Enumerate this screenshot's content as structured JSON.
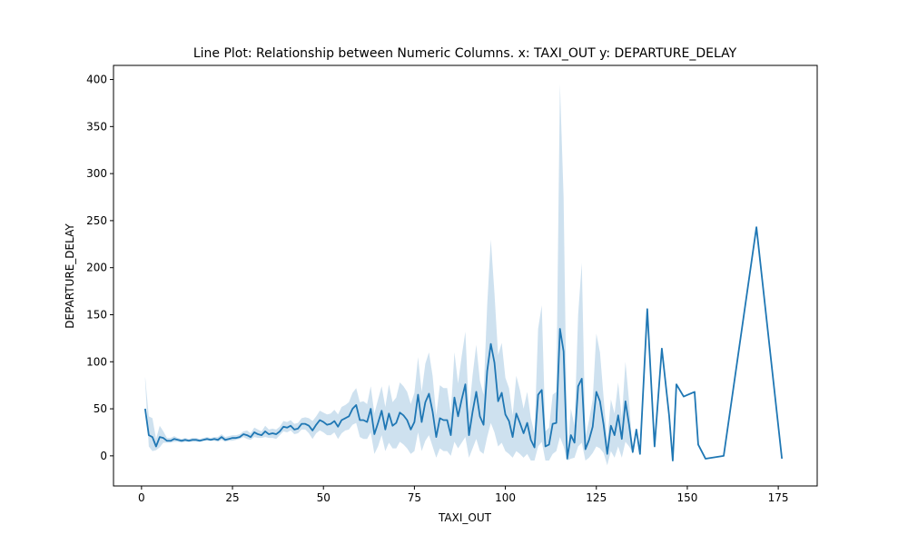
{
  "chart_data": {
    "type": "line",
    "title": "Line Plot: Relationship between Numeric Columns. x: TAXI_OUT y: DEPARTURE_DELAY",
    "xlabel": "TAXI_OUT",
    "ylabel": "DEPARTURE_DELAY",
    "xlim": [
      -7.7,
      185.7
    ],
    "ylim": [
      -32,
      415
    ],
    "xticks": [
      0,
      25,
      50,
      75,
      100,
      125,
      150,
      175
    ],
    "yticks": [
      0,
      50,
      100,
      150,
      200,
      250,
      300,
      350,
      400
    ],
    "grid": false,
    "line_color": "#1f77b4",
    "band_color": "#1f77b4",
    "series": [
      {
        "x": [
          1,
          2,
          3,
          4,
          5,
          6,
          7,
          8,
          9,
          10,
          11,
          12,
          13,
          14,
          15,
          16,
          17,
          18,
          19,
          20,
          21,
          22,
          23,
          24,
          25,
          26,
          27,
          28,
          29,
          30,
          31,
          32,
          33,
          34,
          35,
          36,
          37,
          38,
          39,
          40,
          41,
          42,
          43,
          44,
          45,
          46,
          47,
          48,
          49,
          50,
          51,
          52,
          53,
          54,
          55,
          56,
          57,
          58,
          59,
          60,
          61,
          62,
          63,
          64,
          65,
          66,
          67,
          68,
          69,
          70,
          71,
          72,
          73,
          74,
          75,
          76,
          77,
          78,
          79,
          80,
          81,
          82,
          83,
          84,
          85,
          86,
          87,
          88,
          89,
          90,
          91,
          92,
          93,
          94,
          95,
          96,
          97,
          98,
          99,
          100,
          101,
          102,
          103,
          104,
          105,
          106,
          107,
          108,
          109,
          110,
          111,
          112,
          113,
          114,
          115,
          116,
          117,
          118,
          119,
          120,
          121,
          122,
          123,
          124,
          125,
          126,
          127,
          128,
          129,
          130,
          131,
          132,
          133,
          134,
          135,
          136,
          137,
          139,
          141,
          143,
          145,
          146,
          147,
          149,
          152,
          153,
          155,
          160,
          169,
          176
        ],
        "y": [
          50,
          22,
          20,
          10,
          20,
          19,
          16,
          16,
          18,
          17,
          16,
          17,
          16,
          17,
          17,
          16,
          17,
          18,
          17,
          18,
          17,
          20,
          17,
          18,
          19,
          19,
          20,
          23,
          22,
          20,
          25,
          23,
          22,
          26,
          23,
          24,
          23,
          26,
          31,
          30,
          32,
          28,
          29,
          34,
          34,
          32,
          27,
          33,
          38,
          36,
          33,
          34,
          37,
          31,
          38,
          40,
          42,
          50,
          54,
          38,
          38,
          36,
          50,
          23,
          35,
          48,
          28,
          45,
          32,
          35,
          46,
          43,
          38,
          28,
          36,
          65,
          36,
          57,
          66,
          47,
          20,
          40,
          38,
          38,
          22,
          62,
          42,
          60,
          76,
          22,
          47,
          68,
          42,
          33,
          90,
          119,
          99,
          58,
          67,
          44,
          37,
          20,
          45,
          35,
          24,
          35,
          17,
          9,
          65,
          70,
          10,
          12,
          34,
          35,
          135,
          111,
          -3,
          22,
          14,
          74,
          82,
          7,
          17,
          31,
          68,
          58,
          33,
          2,
          32,
          22,
          43,
          18,
          58,
          33,
          4,
          28,
          2,
          156,
          10,
          114,
          43,
          -5,
          76,
          63,
          68,
          12,
          -3,
          0,
          243,
          -3
        ],
        "lower": [
          80,
          10,
          5,
          6,
          9,
          14,
          14,
          14,
          15,
          15,
          14,
          15,
          15,
          15,
          15,
          15,
          16,
          16,
          16,
          16,
          15,
          17,
          15,
          16,
          16,
          17,
          18,
          20,
          18,
          17,
          20,
          19,
          19,
          20,
          19,
          19,
          18,
          22,
          26,
          25,
          27,
          23,
          24,
          28,
          28,
          24,
          18,
          24,
          27,
          25,
          22,
          22,
          25,
          18,
          24,
          27,
          28,
          33,
          35,
          20,
          18,
          18,
          25,
          2,
          10,
          22,
          5,
          14,
          8,
          8,
          15,
          12,
          8,
          2,
          5,
          25,
          5,
          16,
          22,
          10,
          -2,
          8,
          5,
          5,
          0,
          15,
          8,
          14,
          20,
          -2,
          8,
          18,
          5,
          2,
          20,
          35,
          25,
          10,
          14,
          5,
          2,
          -2,
          5,
          2,
          -2,
          2,
          -5,
          -5,
          10,
          15,
          -5,
          -5,
          2,
          5,
          20,
          10,
          -5,
          -3,
          -2,
          10,
          14,
          -5,
          -2,
          3,
          10,
          8,
          3,
          -10,
          5,
          -2,
          10,
          -2,
          15,
          10,
          4,
          28,
          2,
          156,
          10,
          114,
          43,
          -5,
          76,
          63,
          68,
          12,
          -3,
          0,
          243,
          -3
        ],
        "upper": [
          84,
          42,
          40,
          18,
          32,
          26,
          19,
          19,
          21,
          19,
          18,
          19,
          18,
          19,
          19,
          18,
          19,
          20,
          19,
          20,
          20,
          23,
          20,
          21,
          22,
          22,
          23,
          26,
          27,
          24,
          30,
          28,
          26,
          32,
          28,
          29,
          28,
          31,
          37,
          36,
          38,
          34,
          35,
          40,
          41,
          40,
          37,
          42,
          48,
          46,
          44,
          45,
          49,
          44,
          52,
          54,
          57,
          67,
          72,
          57,
          58,
          55,
          74,
          45,
          60,
          74,
          52,
          76,
          57,
          62,
          78,
          74,
          68,
          55,
          67,
          105,
          68,
          98,
          110,
          85,
          43,
          75,
          72,
          72,
          45,
          110,
          77,
          106,
          132,
          46,
          86,
          118,
          80,
          65,
          160,
          230,
          173,
          107,
          120,
          83,
          72,
          43,
          85,
          70,
          50,
          68,
          40,
          24,
          135,
          160,
          26,
          30,
          65,
          68,
          395,
          275,
          0,
          50,
          32,
          150,
          205,
          20,
          38,
          60,
          130,
          110,
          62,
          15,
          60,
          45,
          78,
          40,
          100,
          58,
          4,
          28,
          2,
          156,
          10,
          114,
          43,
          -5,
          76,
          63,
          68,
          12,
          -3,
          0,
          243,
          -3
        ]
      }
    ]
  }
}
